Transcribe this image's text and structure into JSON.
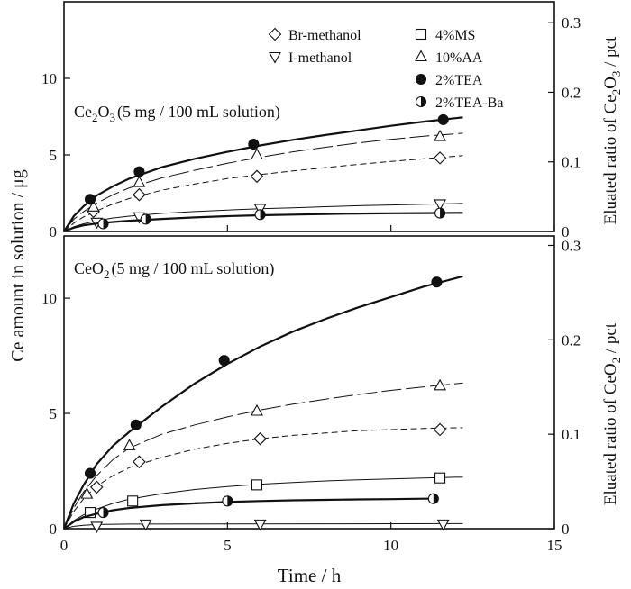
{
  "chart_data": {
    "type": "line",
    "xlabel": "Time  /  h",
    "xlim": [
      0,
      15
    ],
    "x_ticks": [
      "0",
      "5",
      "10",
      "15"
    ],
    "shared_ylabel": "Ce amount in solution / μg",
    "legend": [
      {
        "label": "Br-methanol",
        "marker": "diamond"
      },
      {
        "label": "I-methanol",
        "marker": "triangle-down"
      },
      {
        "label": "4%MS",
        "marker": "square"
      },
      {
        "label": "10%AA",
        "marker": "triangle-up"
      },
      {
        "label": "2%TEA",
        "marker": "filled-circle"
      },
      {
        "label": "2%TEA-Ba",
        "marker": "half-circle"
      }
    ],
    "panels": [
      {
        "id": "top",
        "annotation": {
          "pre": "Ce",
          "sub": "2",
          "mid": "O",
          "sub2": "3",
          "post": "(5 mg / 100 mL solution)"
        },
        "ylim": [
          0,
          15
        ],
        "y_ticks": [
          "0",
          "5",
          "10"
        ],
        "right_ylabel": {
          "pre": "Eluated ratio of Ce",
          "sub": "2",
          "mid": "O",
          "sub2": "3",
          "post": " / pct"
        },
        "right_ylim": [
          0,
          0.33
        ],
        "right_ticks": [
          "0",
          "0.1",
          "0.2",
          "0.3"
        ],
        "series": [
          {
            "name": "Br-methanol",
            "marker": "diamond",
            "line": "dash-short",
            "weight": "thin",
            "points": [
              [
                0.9,
                1.3
              ],
              [
                2.3,
                2.4
              ],
              [
                5.9,
                3.6
              ],
              [
                11.5,
                4.8
              ]
            ],
            "curve": [
              [
                0,
                0
              ],
              [
                0.3,
                0.55
              ],
              [
                0.6,
                0.95
              ],
              [
                1,
                1.35
              ],
              [
                1.5,
                1.8
              ],
              [
                2,
                2.15
              ],
              [
                3,
                2.7
              ],
              [
                4,
                3.1
              ],
              [
                5,
                3.45
              ],
              [
                6,
                3.72
              ],
              [
                7,
                3.95
              ],
              [
                8,
                4.17
              ],
              [
                9,
                4.38
              ],
              [
                10,
                4.57
              ],
              [
                11,
                4.75
              ],
              [
                12.2,
                4.95
              ]
            ]
          },
          {
            "name": "I-methanol",
            "marker": "triangle-down",
            "line": "solid",
            "weight": "thin",
            "points": [
              [
                1.0,
                0.6
              ],
              [
                2.3,
                0.95
              ],
              [
                6.0,
                1.5
              ],
              [
                11.5,
                1.8
              ]
            ],
            "curve": [
              [
                0,
                0
              ],
              [
                0.3,
                0.3
              ],
              [
                0.6,
                0.5
              ],
              [
                1,
                0.7
              ],
              [
                1.5,
                0.88
              ],
              [
                2,
                1.0
              ],
              [
                3,
                1.18
              ],
              [
                4,
                1.3
              ],
              [
                5,
                1.4
              ],
              [
                6,
                1.48
              ],
              [
                7,
                1.55
              ],
              [
                8,
                1.62
              ],
              [
                9,
                1.68
              ],
              [
                10,
                1.73
              ],
              [
                11,
                1.78
              ],
              [
                12.2,
                1.83
              ]
            ]
          },
          {
            "name": "10%AA",
            "marker": "triangle-up",
            "line": "dash-long",
            "weight": "thin",
            "points": [
              [
                0.9,
                1.6
              ],
              [
                2.3,
                3.2
              ],
              [
                5.9,
                5.0
              ],
              [
                11.5,
                6.2
              ]
            ],
            "curve": [
              [
                0,
                0
              ],
              [
                0.3,
                0.8
              ],
              [
                0.6,
                1.3
              ],
              [
                1,
                1.85
              ],
              [
                1.5,
                2.4
              ],
              [
                2,
                2.85
              ],
              [
                3,
                3.5
              ],
              [
                4,
                4.0
              ],
              [
                5,
                4.45
              ],
              [
                6,
                4.85
              ],
              [
                7,
                5.2
              ],
              [
                8,
                5.5
              ],
              [
                9,
                5.78
              ],
              [
                10,
                6.02
              ],
              [
                11,
                6.22
              ],
              [
                12.2,
                6.42
              ]
            ]
          },
          {
            "name": "2%TEA",
            "marker": "filled-circle",
            "line": "solid",
            "weight": "thick",
            "points": [
              [
                0.8,
                2.1
              ],
              [
                2.3,
                3.9
              ],
              [
                5.8,
                5.7
              ],
              [
                11.6,
                7.3
              ]
            ],
            "curve": [
              [
                0,
                0
              ],
              [
                0.3,
                1.0
              ],
              [
                0.6,
                1.65
              ],
              [
                1,
                2.35
              ],
              [
                1.5,
                2.95
              ],
              [
                2,
                3.45
              ],
              [
                3,
                4.2
              ],
              [
                4,
                4.75
              ],
              [
                5,
                5.2
              ],
              [
                6,
                5.62
              ],
              [
                7,
                5.98
              ],
              [
                8,
                6.3
              ],
              [
                9,
                6.6
              ],
              [
                10,
                6.9
              ],
              [
                11,
                7.17
              ],
              [
                12.2,
                7.45
              ]
            ]
          },
          {
            "name": "2%TEA-Ba",
            "marker": "half-circle",
            "line": "solid",
            "weight": "thick",
            "points": [
              [
                1.2,
                0.5
              ],
              [
                2.5,
                0.8
              ],
              [
                6.0,
                1.1
              ],
              [
                11.5,
                1.2
              ]
            ],
            "curve": [
              [
                0,
                0
              ],
              [
                0.3,
                0.25
              ],
              [
                0.6,
                0.4
              ],
              [
                1,
                0.52
              ],
              [
                1.5,
                0.62
              ],
              [
                2,
                0.7
              ],
              [
                3,
                0.82
              ],
              [
                4,
                0.92
              ],
              [
                5,
                1.0
              ],
              [
                6,
                1.06
              ],
              [
                7,
                1.1
              ],
              [
                8,
                1.14
              ],
              [
                9,
                1.17
              ],
              [
                10,
                1.19
              ],
              [
                11,
                1.2
              ],
              [
                12.2,
                1.22
              ]
            ]
          }
        ]
      },
      {
        "id": "bottom",
        "annotation": {
          "pre": "CeO",
          "sub": "2",
          "mid": "",
          "sub2": "",
          "post": "(5 mg / 100 mL solution)"
        },
        "ylim": [
          0,
          12.7
        ],
        "y_ticks": [
          "0",
          "5",
          "10"
        ],
        "right_ylabel": {
          "pre": "Eluated ratio of CeO",
          "sub": "2",
          "mid": "",
          "sub2": "",
          "post": " / pct"
        },
        "right_ylim": [
          0,
          0.31
        ],
        "right_ticks": [
          "0",
          "0.1",
          "0.2",
          "0.3"
        ],
        "series": [
          {
            "name": "Br-methanol",
            "marker": "diamond",
            "line": "dash-short",
            "weight": "thin",
            "points": [
              [
                1.0,
                1.8
              ],
              [
                2.3,
                2.9
              ],
              [
                6.0,
                3.9
              ],
              [
                11.5,
                4.3
              ]
            ],
            "curve": [
              [
                0,
                0
              ],
              [
                0.3,
                0.75
              ],
              [
                0.6,
                1.3
              ],
              [
                1,
                1.85
              ],
              [
                1.5,
                2.3
              ],
              [
                2,
                2.65
              ],
              [
                3,
                3.1
              ],
              [
                4,
                3.45
              ],
              [
                5,
                3.7
              ],
              [
                6,
                3.9
              ],
              [
                7,
                4.05
              ],
              [
                8,
                4.15
              ],
              [
                9,
                4.25
              ],
              [
                10,
                4.3
              ],
              [
                11,
                4.35
              ],
              [
                12.2,
                4.38
              ]
            ]
          },
          {
            "name": "I-methanol",
            "marker": "triangle-down",
            "line": "solid",
            "weight": "thin",
            "points": [
              [
                1.0,
                0.1
              ],
              [
                2.5,
                0.2
              ],
              [
                6.0,
                0.2
              ],
              [
                11.6,
                0.2
              ]
            ],
            "curve": [
              [
                0,
                0
              ],
              [
                0.3,
                0.1
              ],
              [
                0.6,
                0.15
              ],
              [
                1,
                0.18
              ],
              [
                2,
                0.2
              ],
              [
                12.2,
                0.22
              ]
            ]
          },
          {
            "name": "4%MS",
            "marker": "square",
            "line": "solid",
            "weight": "thin",
            "points": [
              [
                0.8,
                0.7
              ],
              [
                2.1,
                1.2
              ],
              [
                5.9,
                1.9
              ],
              [
                11.5,
                2.2
              ]
            ],
            "curve": [
              [
                0,
                0
              ],
              [
                0.3,
                0.35
              ],
              [
                0.6,
                0.6
              ],
              [
                1,
                0.85
              ],
              [
                1.5,
                1.1
              ],
              [
                2,
                1.28
              ],
              [
                3,
                1.52
              ],
              [
                4,
                1.7
              ],
              [
                5,
                1.83
              ],
              [
                6,
                1.93
              ],
              [
                7,
                2.0
              ],
              [
                8,
                2.07
              ],
              [
                9,
                2.12
              ],
              [
                10,
                2.16
              ],
              [
                11,
                2.2
              ],
              [
                12.2,
                2.24
              ]
            ]
          },
          {
            "name": "10%AA",
            "marker": "triangle-up",
            "line": "dash-long",
            "weight": "thin",
            "points": [
              [
                0.7,
                1.5
              ],
              [
                2.0,
                3.6
              ],
              [
                5.9,
                5.1
              ],
              [
                11.5,
                6.2
              ]
            ],
            "curve": [
              [
                0,
                0
              ],
              [
                0.3,
                0.9
              ],
              [
                0.6,
                1.6
              ],
              [
                1,
                2.3
              ],
              [
                1.5,
                3.0
              ],
              [
                2,
                3.5
              ],
              [
                3,
                4.1
              ],
              [
                4,
                4.5
              ],
              [
                5,
                4.85
              ],
              [
                6,
                5.15
              ],
              [
                7,
                5.4
              ],
              [
                8,
                5.62
              ],
              [
                9,
                5.82
              ],
              [
                10,
                6.0
              ],
              [
                11,
                6.15
              ],
              [
                12.2,
                6.32
              ]
            ]
          },
          {
            "name": "2%TEA",
            "marker": "filled-circle",
            "line": "solid",
            "weight": "thick",
            "points": [
              [
                0.8,
                2.4
              ],
              [
                2.2,
                4.5
              ],
              [
                4.9,
                7.3
              ],
              [
                11.4,
                10.7
              ]
            ],
            "curve": [
              [
                0,
                0
              ],
              [
                0.3,
                1.1
              ],
              [
                0.6,
                1.9
              ],
              [
                1,
                2.8
              ],
              [
                1.5,
                3.6
              ],
              [
                2,
                4.2
              ],
              [
                3,
                5.3
              ],
              [
                4,
                6.3
              ],
              [
                5,
                7.15
              ],
              [
                6,
                7.9
              ],
              [
                7,
                8.55
              ],
              [
                8,
                9.1
              ],
              [
                9,
                9.6
              ],
              [
                10,
                10.05
              ],
              [
                11,
                10.5
              ],
              [
                12.2,
                10.95
              ]
            ]
          },
          {
            "name": "2%TEA-Ba",
            "marker": "half-circle",
            "line": "solid",
            "weight": "thick",
            "points": [
              [
                1.2,
                0.7
              ],
              [
                5.0,
                1.2
              ],
              [
                11.3,
                1.3
              ]
            ],
            "curve": [
              [
                0,
                0
              ],
              [
                0.3,
                0.3
              ],
              [
                0.6,
                0.5
              ],
              [
                1,
                0.65
              ],
              [
                1.5,
                0.8
              ],
              [
                2,
                0.9
              ],
              [
                3,
                1.02
              ],
              [
                4,
                1.1
              ],
              [
                5,
                1.16
              ],
              [
                6,
                1.2
              ],
              [
                7,
                1.23
              ],
              [
                8,
                1.25
              ],
              [
                9,
                1.27
              ],
              [
                10,
                1.28
              ],
              [
                11,
                1.3
              ],
              [
                11.4,
                1.3
              ]
            ]
          }
        ]
      }
    ]
  }
}
